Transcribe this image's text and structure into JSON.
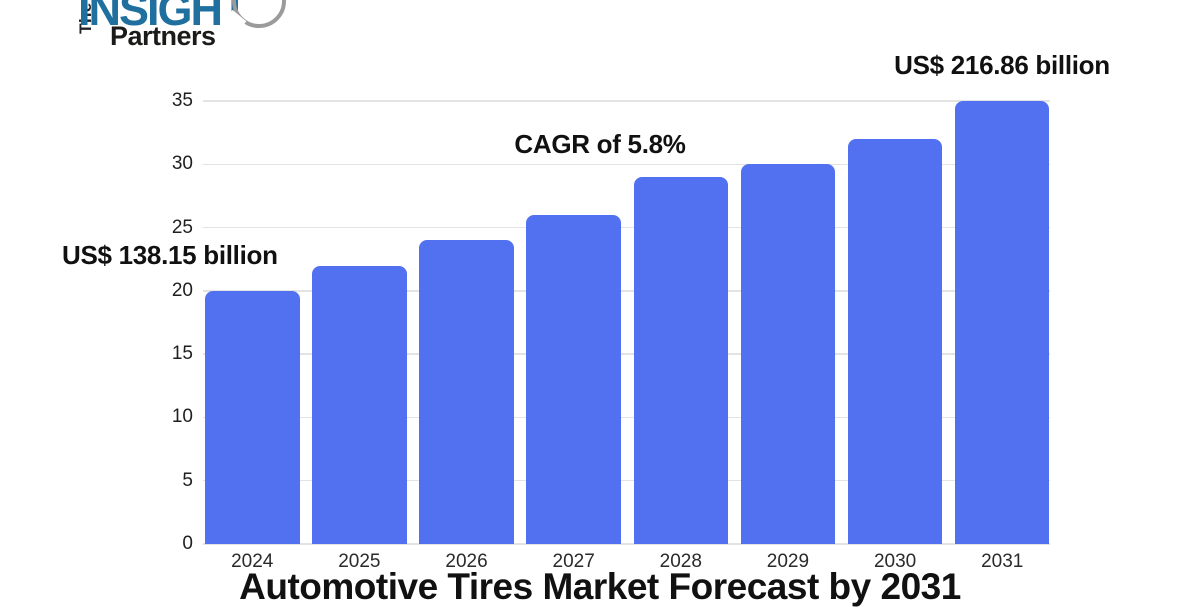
{
  "logo": {
    "the": "The",
    "insight": "INSIGHT",
    "partners": "Partners",
    "insight_color": "#1f6f9f",
    "text_color": "#1b1b19"
  },
  "annotations": {
    "start_value": "US$ 138.15 billion",
    "cagr": "CAGR of 5.8%",
    "end_value": "US$ 216.86 billion"
  },
  "chart_data": {
    "type": "bar",
    "title": "Automotive Tires Market Forecast by 2031",
    "categories": [
      "2024",
      "2025",
      "2026",
      "2027",
      "2028",
      "2029",
      "2030",
      "2031"
    ],
    "values": [
      20,
      22,
      24,
      26,
      29,
      30,
      32,
      35
    ],
    "y_ticks": [
      0,
      5,
      10,
      15,
      20,
      25,
      30,
      35
    ],
    "ylim": [
      0,
      35
    ],
    "xlabel": "",
    "ylabel": "",
    "grid": true,
    "legend": "none",
    "bar_color": "#5271f0",
    "gridline_color": "#e3e3e3"
  }
}
